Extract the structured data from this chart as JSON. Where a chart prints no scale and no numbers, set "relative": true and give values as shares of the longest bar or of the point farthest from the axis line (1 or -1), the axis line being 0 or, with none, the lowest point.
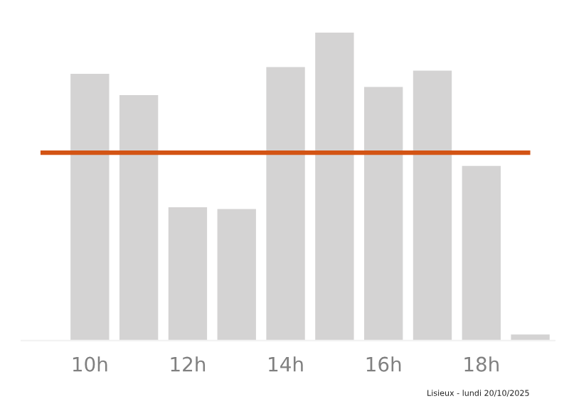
{
  "chart_data": {
    "type": "bar",
    "relative": true,
    "categories": [
      "10h",
      null,
      "12h",
      null,
      "14h",
      null,
      "16h",
      null,
      "18h",
      null
    ],
    "values": [
      0.866,
      0.797,
      0.433,
      0.427,
      0.888,
      1,
      0.823,
      0.876,
      0.567,
      0.02
    ],
    "color": "#d4d3d3",
    "ref_lines": [
      {
        "axis": "y",
        "value": 0.61,
        "color": "#d35414"
      }
    ],
    "annotations": [
      "Lisieux - lundi 20/10/2025"
    ],
    "grid": false,
    "legend": false
  }
}
